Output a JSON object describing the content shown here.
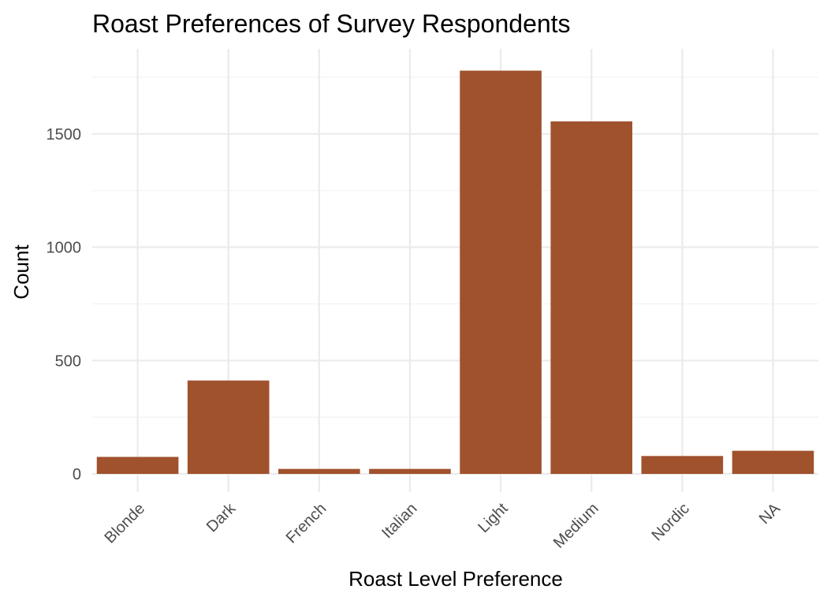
{
  "chart_data": {
    "type": "bar",
    "title": "Roast Preferences of Survey Respondents",
    "xlabel": "Roast Level Preference",
    "ylabel": "Count",
    "categories": [
      "Blonde",
      "Dark",
      "French",
      "Italian",
      "Light",
      "Medium",
      "Nordic",
      "NA"
    ],
    "values": [
      75,
      412,
      22,
      22,
      1779,
      1555,
      79,
      102
    ],
    "ylim": [
      -80,
      1875
    ],
    "yticks": [
      0,
      500,
      1000,
      1500
    ],
    "ytick_labels": [
      "0",
      "500",
      "1000",
      "1500"
    ],
    "grid": true,
    "bar_color": "#A0522D",
    "legend": "none"
  }
}
